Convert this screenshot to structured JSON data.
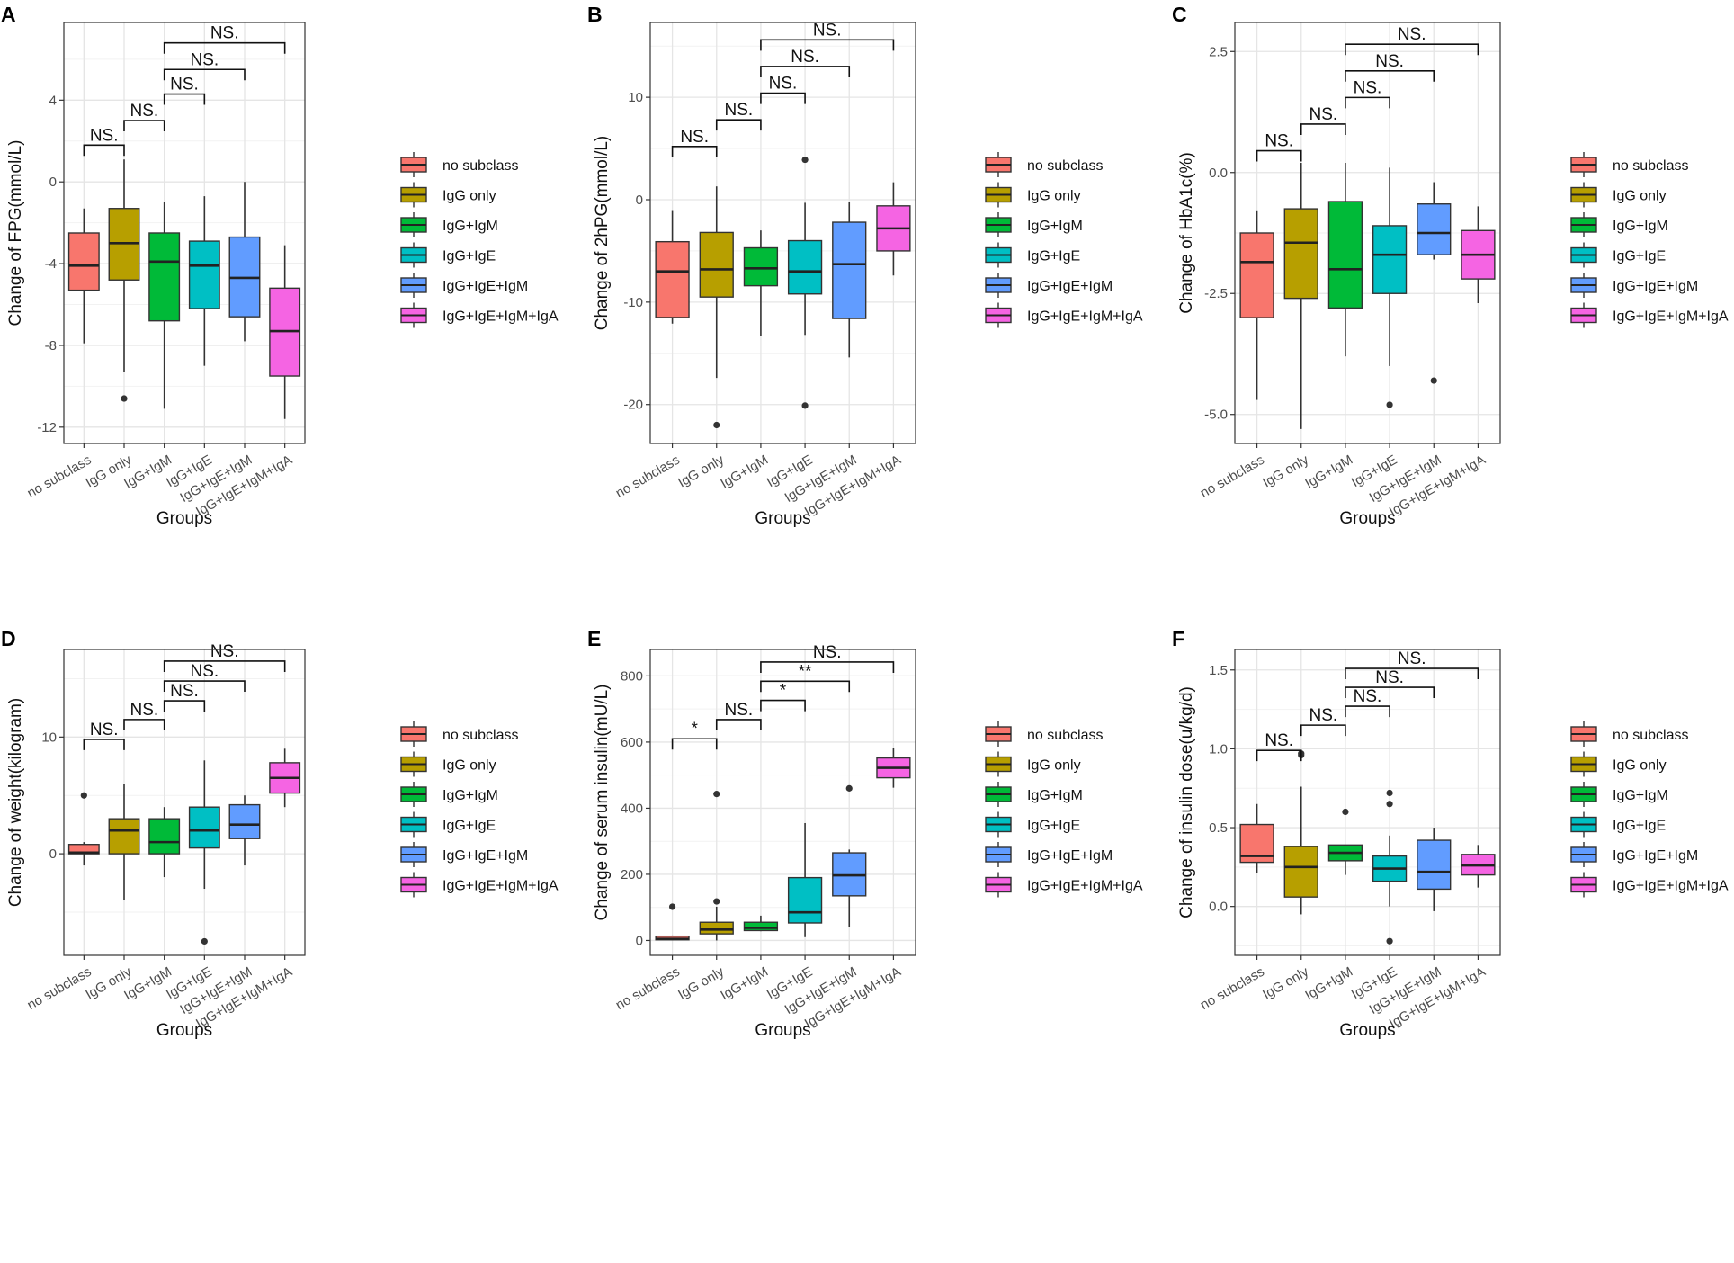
{
  "figure": {
    "groups": [
      "no subclass",
      "IgG only",
      "IgG+IgM",
      "IgG+IgE",
      "IgG+IgE+IgM",
      "IgG+IgE+IgM+IgA"
    ],
    "colors": [
      "#F8766D",
      "#B79F00",
      "#00BA38",
      "#00BFC4",
      "#619CFF",
      "#F564E3"
    ],
    "xlabel": "Groups",
    "legend_labels": [
      "no subclass",
      "IgG only",
      "IgG+IgM",
      "IgG+IgE",
      "IgG+IgE+IgM",
      "IgG+IgE+IgM+IgA"
    ]
  },
  "chart_data": [
    {
      "panel": "A",
      "type": "box",
      "ylabel": "Change of FPG(mmol/L)",
      "ylim": [
        -12.8,
        7.8
      ],
      "yticks": [
        4,
        0,
        -4,
        -8,
        -12
      ],
      "ytick_labels": [
        "4",
        "0",
        "-4",
        "-8",
        "-12"
      ],
      "boxes": [
        {
          "group": "no subclass",
          "whislo": -7.9,
          "q1": -5.3,
          "med": -4.1,
          "q3": -2.5,
          "whishi": -1.3,
          "fliers": []
        },
        {
          "group": "IgG only",
          "whislo": -9.3,
          "q1": -4.8,
          "med": -3.0,
          "q3": -1.3,
          "whishi": 1.1,
          "fliers": [
            -10.6
          ]
        },
        {
          "group": "IgG+IgM",
          "whislo": -11.1,
          "q1": -6.8,
          "med": -3.9,
          "q3": -2.5,
          "whishi": -1.0,
          "fliers": []
        },
        {
          "group": "IgG+IgE",
          "whislo": -9.0,
          "q1": -6.2,
          "med": -4.1,
          "q3": -2.9,
          "whishi": -0.7,
          "fliers": []
        },
        {
          "group": "IgG+IgE+IgM",
          "whislo": -7.8,
          "q1": -6.6,
          "med": -4.7,
          "q3": -2.7,
          "whishi": 0.0,
          "fliers": []
        },
        {
          "group": "IgG+IgE+IgM+IgA",
          "whislo": -11.6,
          "q1": -9.5,
          "med": -7.3,
          "q3": -5.2,
          "whishi": -3.1,
          "fliers": []
        }
      ],
      "comparisons": [
        {
          "from": 0,
          "to": 1,
          "y": 1.8,
          "label": "NS."
        },
        {
          "from": 1,
          "to": 2,
          "y": 3.0,
          "label": "NS."
        },
        {
          "from": 2,
          "to": 3,
          "y": 4.3,
          "label": "NS."
        },
        {
          "from": 2,
          "to": 4,
          "y": 5.5,
          "label": "NS."
        },
        {
          "from": 2,
          "to": 5,
          "y": 6.8,
          "label": "NS."
        }
      ]
    },
    {
      "panel": "B",
      "type": "box",
      "ylabel": "Change of 2hPG(mmol/L)",
      "ylim": [
        -23.8,
        17.3
      ],
      "yticks": [
        10,
        0,
        -10,
        -20
      ],
      "ytick_labels": [
        "10",
        "0",
        "-10",
        "-20"
      ],
      "boxes": [
        {
          "group": "no subclass",
          "whislo": -12.1,
          "q1": -11.5,
          "med": -7.0,
          "q3": -4.1,
          "whishi": -1.1,
          "fliers": []
        },
        {
          "group": "IgG only",
          "whislo": -17.4,
          "q1": -9.5,
          "med": -6.8,
          "q3": -3.2,
          "whishi": 1.3,
          "fliers": [
            -22.0
          ]
        },
        {
          "group": "IgG+IgM",
          "whislo": -13.3,
          "q1": -8.4,
          "med": -6.7,
          "q3": -4.7,
          "whishi": -3.0,
          "fliers": []
        },
        {
          "group": "IgG+IgE",
          "whislo": -13.2,
          "q1": -9.2,
          "med": -7.0,
          "q3": -4.0,
          "whishi": -0.3,
          "fliers": [
            3.9,
            -20.1
          ]
        },
        {
          "group": "IgG+IgE+IgM",
          "whislo": -15.4,
          "q1": -11.6,
          "med": -6.3,
          "q3": -2.2,
          "whishi": -0.2,
          "fliers": []
        },
        {
          "group": "IgG+IgE+IgM+IgA",
          "whislo": -7.4,
          "q1": -5.0,
          "med": -2.8,
          "q3": -0.6,
          "whishi": 1.7,
          "fliers": []
        }
      ],
      "comparisons": [
        {
          "from": 0,
          "to": 1,
          "y": 5.2,
          "label": "NS."
        },
        {
          "from": 1,
          "to": 2,
          "y": 7.8,
          "label": "NS."
        },
        {
          "from": 2,
          "to": 3,
          "y": 10.4,
          "label": "NS."
        },
        {
          "from": 2,
          "to": 4,
          "y": 13.0,
          "label": "NS."
        },
        {
          "from": 2,
          "to": 5,
          "y": 15.6,
          "label": "NS."
        }
      ]
    },
    {
      "panel": "C",
      "type": "box",
      "ylabel": "Change of HbA1c(%)",
      "ylim": [
        -5.6,
        3.1
      ],
      "yticks": [
        2.5,
        0.0,
        -2.5,
        -5.0
      ],
      "ytick_labels": [
        "2.5",
        "0.0",
        "-2.5",
        "-5.0"
      ],
      "boxes": [
        {
          "group": "no subclass",
          "whislo": -4.7,
          "q1": -3.0,
          "med": -1.85,
          "q3": -1.25,
          "whishi": -0.8,
          "fliers": []
        },
        {
          "group": "IgG only",
          "whislo": -5.3,
          "q1": -2.6,
          "med": -1.45,
          "q3": -0.75,
          "whishi": 0.2,
          "fliers": []
        },
        {
          "group": "IgG+IgM",
          "whislo": -3.8,
          "q1": -2.8,
          "med": -2.0,
          "q3": -0.6,
          "whishi": 0.2,
          "fliers": []
        },
        {
          "group": "IgG+IgE",
          "whislo": -4.0,
          "q1": -2.5,
          "med": -1.7,
          "q3": -1.1,
          "whishi": 0.1,
          "fliers": [
            -4.8
          ]
        },
        {
          "group": "IgG+IgE+IgM",
          "whislo": -1.8,
          "q1": -1.7,
          "med": -1.25,
          "q3": -0.65,
          "whishi": -0.2,
          "fliers": [
            -4.3
          ]
        },
        {
          "group": "IgG+IgE+IgM+IgA",
          "whislo": -2.7,
          "q1": -2.2,
          "med": -1.7,
          "q3": -1.2,
          "whishi": -0.7,
          "fliers": []
        }
      ],
      "comparisons": [
        {
          "from": 0,
          "to": 1,
          "y": 0.45,
          "label": "NS."
        },
        {
          "from": 1,
          "to": 2,
          "y": 1.0,
          "label": "NS."
        },
        {
          "from": 2,
          "to": 3,
          "y": 1.55,
          "label": "NS."
        },
        {
          "from": 2,
          "to": 4,
          "y": 2.1,
          "label": "NS."
        },
        {
          "from": 2,
          "to": 5,
          "y": 2.65,
          "label": "NS."
        }
      ]
    },
    {
      "panel": "D",
      "type": "box",
      "ylabel": "Change of weight(kilogram)",
      "ylim": [
        -8.7,
        17.5
      ],
      "yticks": [
        10,
        0
      ],
      "ytick_labels": [
        "10",
        "0"
      ],
      "boxes": [
        {
          "group": "no subclass",
          "whislo": -1.0,
          "q1": 0.0,
          "med": 0.1,
          "q3": 0.8,
          "whishi": 1.0,
          "fliers": [
            5.0
          ]
        },
        {
          "group": "IgG only",
          "whislo": -4.0,
          "q1": 0.0,
          "med": 2.0,
          "q3": 3.0,
          "whishi": 6.0,
          "fliers": []
        },
        {
          "group": "IgG+IgM",
          "whislo": -2.0,
          "q1": 0.0,
          "med": 1.0,
          "q3": 3.0,
          "whishi": 4.0,
          "fliers": []
        },
        {
          "group": "IgG+IgE",
          "whislo": -3.0,
          "q1": 0.5,
          "med": 2.0,
          "q3": 4.0,
          "whishi": 8.0,
          "fliers": [
            -7.5
          ]
        },
        {
          "group": "IgG+IgE+IgM",
          "whislo": -1.0,
          "q1": 1.3,
          "med": 2.5,
          "q3": 4.2,
          "whishi": 5.0,
          "fliers": []
        },
        {
          "group": "IgG+IgE+IgM+IgA",
          "whislo": 4.0,
          "q1": 5.2,
          "med": 6.5,
          "q3": 7.8,
          "whishi": 9.0,
          "fliers": []
        }
      ],
      "comparisons": [
        {
          "from": 0,
          "to": 1,
          "y": 9.8,
          "label": "NS."
        },
        {
          "from": 1,
          "to": 2,
          "y": 11.5,
          "label": "NS."
        },
        {
          "from": 2,
          "to": 3,
          "y": 13.1,
          "label": "NS."
        },
        {
          "from": 2,
          "to": 4,
          "y": 14.8,
          "label": "NS."
        },
        {
          "from": 2,
          "to": 5,
          "y": 16.5,
          "label": "NS."
        }
      ]
    },
    {
      "panel": "E",
      "type": "box",
      "ylabel": "Change of serum insulin(mU/L)",
      "ylim": [
        -45,
        880
      ],
      "yticks": [
        800,
        600,
        400,
        200,
        0
      ],
      "ytick_labels": [
        "800",
        "600",
        "400",
        "200",
        "0"
      ],
      "boxes": [
        {
          "group": "no subclass",
          "whislo": 0,
          "q1": 2,
          "med": 5,
          "q3": 13,
          "whishi": 15,
          "fliers": [
            102
          ]
        },
        {
          "group": "IgG only",
          "whislo": 0,
          "q1": 20,
          "med": 33,
          "q3": 55,
          "whishi": 102,
          "fliers": [
            118,
            443
          ]
        },
        {
          "group": "IgG+IgM",
          "whislo": 28,
          "q1": 30,
          "med": 38,
          "q3": 55,
          "whishi": 75,
          "fliers": []
        },
        {
          "group": "IgG+IgE",
          "whislo": 10,
          "q1": 53,
          "med": 85,
          "q3": 190,
          "whishi": 355,
          "fliers": []
        },
        {
          "group": "IgG+IgE+IgM",
          "whislo": 42,
          "q1": 135,
          "med": 197,
          "q3": 265,
          "whishi": 275,
          "fliers": [
            460
          ]
        },
        {
          "group": "IgG+IgE+IgM+IgA",
          "whislo": 462,
          "q1": 492,
          "med": 522,
          "q3": 552,
          "whishi": 582,
          "fliers": []
        }
      ],
      "comparisons": [
        {
          "from": 0,
          "to": 1,
          "y": 610,
          "label": "*"
        },
        {
          "from": 1,
          "to": 2,
          "y": 668,
          "label": "NS."
        },
        {
          "from": 2,
          "to": 3,
          "y": 726,
          "label": "*"
        },
        {
          "from": 2,
          "to": 4,
          "y": 784,
          "label": "**"
        },
        {
          "from": 2,
          "to": 5,
          "y": 842,
          "label": "NS."
        }
      ]
    },
    {
      "panel": "F",
      "type": "box",
      "ylabel": "Change of insulin dose(u/kg/d)",
      "ylim": [
        -0.31,
        1.63
      ],
      "yticks": [
        1.5,
        1.0,
        0.5,
        0.0
      ],
      "ytick_labels": [
        "1.5",
        "1.0",
        "0.5",
        "0.0"
      ],
      "boxes": [
        {
          "group": "no subclass",
          "whislo": 0.21,
          "q1": 0.28,
          "med": 0.32,
          "q3": 0.52,
          "whishi": 0.65,
          "fliers": []
        },
        {
          "group": "IgG only",
          "whislo": -0.05,
          "q1": 0.06,
          "med": 0.25,
          "q3": 0.38,
          "whishi": 0.76,
          "fliers": [
            0.96,
            0.97
          ]
        },
        {
          "group": "IgG+IgM",
          "whislo": 0.2,
          "q1": 0.29,
          "med": 0.34,
          "q3": 0.39,
          "whishi": 0.39,
          "fliers": [
            0.6
          ]
        },
        {
          "group": "IgG+IgE",
          "whislo": 0.0,
          "q1": 0.16,
          "med": 0.24,
          "q3": 0.32,
          "whishi": 0.45,
          "fliers": [
            0.72,
            0.65,
            -0.22
          ]
        },
        {
          "group": "IgG+IgE+IgM",
          "whislo": -0.03,
          "q1": 0.11,
          "med": 0.22,
          "q3": 0.42,
          "whishi": 0.5,
          "fliers": []
        },
        {
          "group": "IgG+IgE+IgM+IgA",
          "whislo": 0.12,
          "q1": 0.2,
          "med": 0.26,
          "q3": 0.33,
          "whishi": 0.39,
          "fliers": []
        }
      ],
      "comparisons": [
        {
          "from": 0,
          "to": 1,
          "y": 0.99,
          "label": "NS."
        },
        {
          "from": 1,
          "to": 2,
          "y": 1.15,
          "label": "NS."
        },
        {
          "from": 2,
          "to": 3,
          "y": 1.27,
          "label": "NS."
        },
        {
          "from": 2,
          "to": 4,
          "y": 1.39,
          "label": "NS."
        },
        {
          "from": 2,
          "to": 5,
          "y": 1.51,
          "label": "NS."
        }
      ]
    }
  ]
}
